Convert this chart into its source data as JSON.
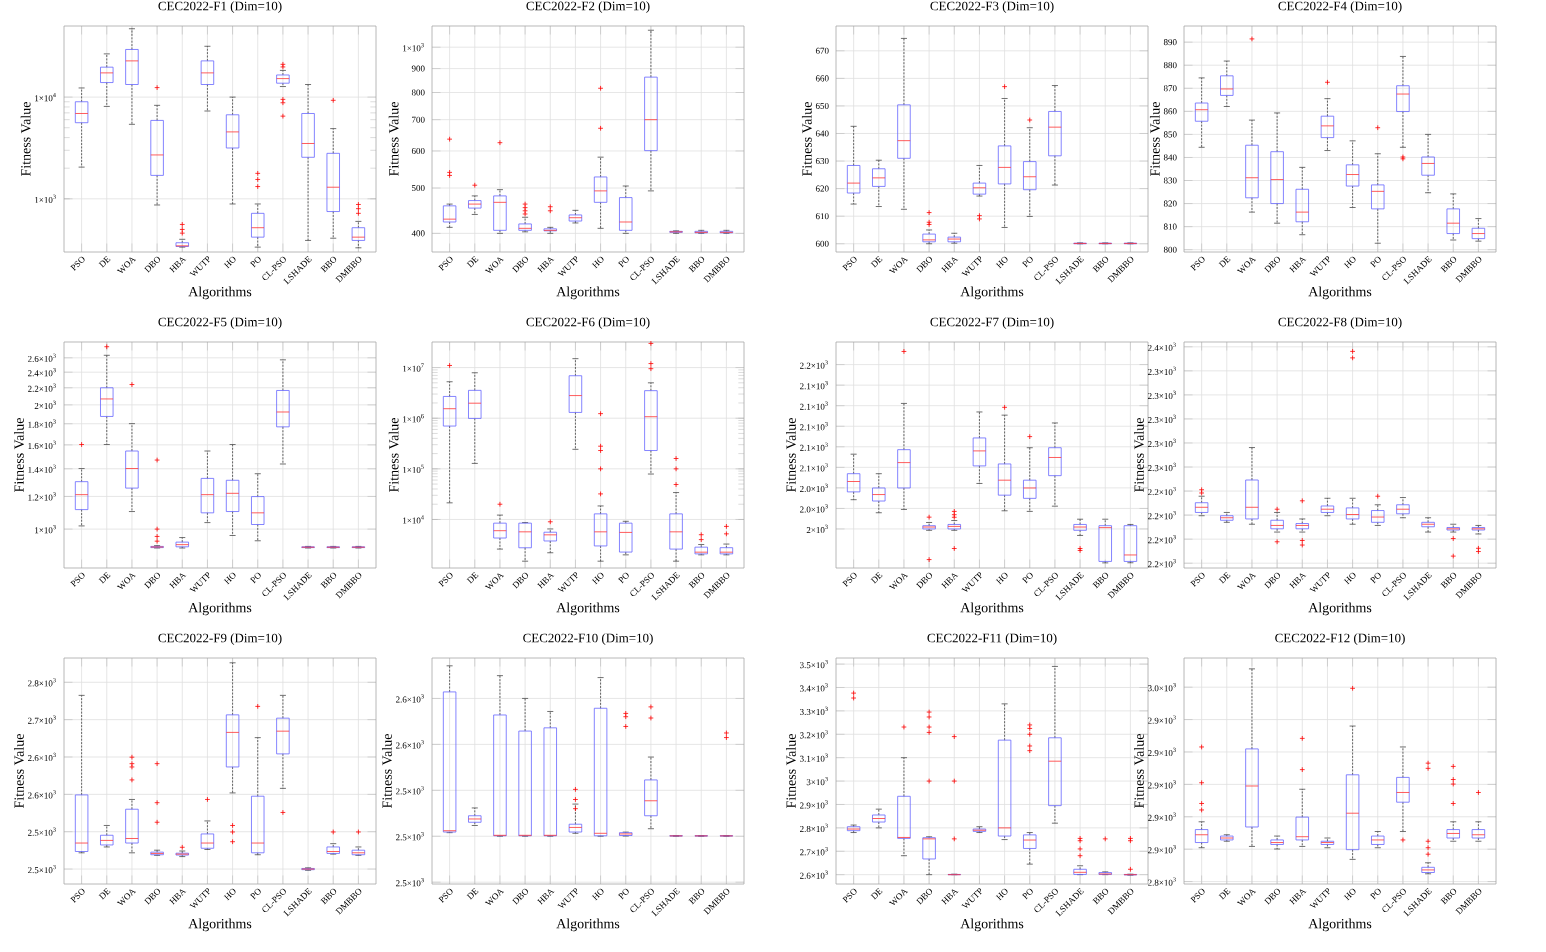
{
  "chart_data": [
    {
      "type": "box",
      "title": "CEC2022-F1 (Dim=10)",
      "xlabel": "Algorithms",
      "ylabel": "Fitness Value",
      "log": true,
      "grid": true,
      "categories": [
        "PSO",
        "DE",
        "WOA",
        "DBO",
        "HBA",
        "WUTP",
        "HO",
        "PO",
        "CL-PSO",
        "LSHADE",
        "BBO",
        "DMBBO"
      ],
      "ylim": [
        300,
        50000
      ],
      "yticks": [
        {
          "value": 1000,
          "label": "1×10$^{3}$"
        },
        {
          "value": 10000,
          "label": "1×10$^{4}$"
        }
      ],
      "boxes": [
        {
          "low": 2050,
          "q1": 5600,
          "median": 6900,
          "q3": 9000,
          "high": 12300
        },
        {
          "low": 8100,
          "q1": 13900,
          "median": 17300,
          "q3": 19700,
          "high": 26600
        },
        {
          "low": 5400,
          "q1": 13300,
          "median": 22700,
          "q3": 29400,
          "high": 47000
        },
        {
          "low": 870,
          "q1": 1700,
          "median": 2700,
          "q3": 5900,
          "high": 8300,
          "outliers": [
            12400
          ]
        },
        {
          "low": 335,
          "q1": 340,
          "median": 345,
          "q3": 370,
          "high": 400,
          "outliers": [
            460,
            500,
            560
          ]
        },
        {
          "low": 7300,
          "q1": 13300,
          "median": 17300,
          "q3": 22700,
          "high": 31600
        },
        {
          "low": 890,
          "q1": 3160,
          "median": 4550,
          "q3": 6700,
          "high": 10000
        },
        {
          "low": 335,
          "q1": 420,
          "median": 520,
          "q3": 720,
          "high": 890,
          "outliers": [
            1320,
            1550,
            1780
          ]
        },
        {
          "low": 12700,
          "q1": 13700,
          "median": 15200,
          "q3": 16500,
          "high": 18300,
          "outliers": [
            19800,
            21000,
            9500,
            8800,
            6500
          ]
        },
        {
          "low": 390,
          "q1": 2560,
          "median": 3500,
          "q3": 6900,
          "high": 13300
        },
        {
          "low": 410,
          "q1": 750,
          "median": 1300,
          "q3": 2800,
          "high": 4900,
          "outliers": [
            9300
          ]
        },
        {
          "low": 330,
          "q1": 390,
          "median": 420,
          "q3": 520,
          "high": 600,
          "outliers": [
            720,
            800,
            880
          ]
        }
      ]
    },
    {
      "type": "box",
      "title": "CEC2022-F2 (Dim=10)",
      "xlabel": "Algorithms",
      "ylabel": "Fitness Value",
      "log": true,
      "grid": true,
      "categories": [
        "PSO",
        "DE",
        "WOA",
        "DBO",
        "HBA",
        "WUTP",
        "HO",
        "PO",
        "CL-PSO",
        "LSHADE",
        "BBO",
        "DMBBO"
      ],
      "ylim": [
        365,
        1110
      ],
      "yticks": [
        400,
        500,
        600,
        700,
        800,
        900,
        {
          "value": 1000,
          "label": "1×10$^{3}$"
        }
      ],
      "boxes": [
        {
          "low": 412,
          "q1": 423,
          "median": 429,
          "q3": 458,
          "high": 462,
          "outliers": [
            532,
            540,
            636
          ]
        },
        {
          "low": 439,
          "q1": 453,
          "median": 462,
          "q3": 470,
          "high": 481,
          "outliers": [
            507
          ]
        },
        {
          "low": 400,
          "q1": 406,
          "median": 466,
          "q3": 481,
          "high": 496,
          "outliers": [
            625
          ]
        },
        {
          "low": 403,
          "q1": 406,
          "median": 410,
          "q3": 419,
          "high": 433,
          "outliers": [
            440,
            447,
            454,
            462
          ]
        },
        {
          "low": 400,
          "q1": 405,
          "median": 406,
          "q3": 409,
          "high": 412,
          "outliers": [
            447,
            456
          ]
        },
        {
          "low": 421,
          "q1": 425,
          "median": 432,
          "q3": 438,
          "high": 448
        },
        {
          "low": 410,
          "q1": 466,
          "median": 493,
          "q3": 528,
          "high": 582,
          "outliers": [
            671,
            817
          ]
        },
        {
          "low": 400,
          "q1": 406,
          "median": 423,
          "q3": 477,
          "high": 505
        },
        {
          "low": 493,
          "q1": 601,
          "median": 700,
          "q3": 863,
          "high": 1087
        },
        {
          "low": 400,
          "q1": 402,
          "median": 403,
          "q3": 404,
          "high": 405
        },
        {
          "low": 400,
          "q1": 401,
          "median": 402,
          "q3": 404,
          "high": 406
        },
        {
          "low": 400,
          "q1": 401,
          "median": 402,
          "q3": 404,
          "high": 406
        }
      ]
    },
    {
      "type": "box",
      "title": "CEC2022-F3 (Dim=10)",
      "xlabel": "Algorithms",
      "ylabel": "Fitness Value",
      "grid": true,
      "categories": [
        "PSO",
        "DE",
        "WOA",
        "DBO",
        "HBA",
        "WUTP",
        "HO",
        "PO",
        "CL-PSO",
        "LSHADE",
        "BBO",
        "DMBBO"
      ],
      "ylim": [
        597,
        679
      ],
      "yticks": [
        600,
        610,
        620,
        630,
        640,
        650,
        660,
        670
      ],
      "boxes": [
        {
          "low": 614.4,
          "q1": 618.4,
          "median": 622,
          "q3": 628.4,
          "high": 642.6
        },
        {
          "low": 613.5,
          "q1": 620.8,
          "median": 623.9,
          "q3": 627.2,
          "high": 630.3
        },
        {
          "low": 612.5,
          "q1": 631,
          "median": 637.4,
          "q3": 650.4,
          "high": 674.5
        },
        {
          "low": 600,
          "q1": 600.7,
          "median": 601.4,
          "q3": 603.5,
          "high": 605,
          "outliers": [
            607,
            607.8,
            611.3
          ]
        },
        {
          "low": 600.2,
          "q1": 600.7,
          "median": 601.7,
          "q3": 602.4,
          "high": 603.8
        },
        {
          "low": 617.3,
          "q1": 618,
          "median": 620.3,
          "q3": 622,
          "high": 628.4,
          "outliers": [
            610.2,
            609
          ]
        },
        {
          "low": 605.9,
          "q1": 621.7,
          "median": 627.7,
          "q3": 635.5,
          "high": 652.7,
          "outliers": [
            657
          ]
        },
        {
          "low": 609.9,
          "q1": 619.6,
          "median": 624.3,
          "q3": 629.8,
          "high": 642.1,
          "outliers": [
            644.9
          ]
        },
        {
          "low": 621.3,
          "q1": 631.9,
          "median": 642.3,
          "q3": 648,
          "high": 657.4
        },
        {
          "low": 600,
          "q1": 600,
          "median": 600.1,
          "q3": 600.2,
          "high": 600.3
        },
        {
          "low": 600,
          "q1": 600,
          "median": 600.1,
          "q3": 600.2,
          "high": 600.3
        },
        {
          "low": 600,
          "q1": 600,
          "median": 600.1,
          "q3": 600.2,
          "high": 600.3
        }
      ]
    },
    {
      "type": "box",
      "title": "CEC2022-F4 (Dim=10)",
      "xlabel": "Algorithms",
      "ylabel": "Fitness Value",
      "grid": true,
      "categories": [
        "PSO",
        "DE",
        "WOA",
        "DBO",
        "HBA",
        "WUTP",
        "HO",
        "PO",
        "CL-PSO",
        "LSHADE",
        "BBO",
        "DMBBO"
      ],
      "ylim": [
        799,
        897
      ],
      "yticks": [
        800,
        810,
        820,
        830,
        840,
        850,
        860,
        870,
        880,
        890
      ],
      "boxes": [
        {
          "low": 844.4,
          "q1": 855.7,
          "median": 860.7,
          "q3": 863.6,
          "high": 874.5
        },
        {
          "low": 862.1,
          "q1": 866.9,
          "median": 869.7,
          "q3": 875.4,
          "high": 881.8
        },
        {
          "low": 816.3,
          "q1": 822.5,
          "median": 831.2,
          "q3": 845.3,
          "high": 856.2,
          "outliers": [
            891.4
          ]
        },
        {
          "low": 811.5,
          "q1": 820,
          "median": 830.4,
          "q3": 842.5,
          "high": 859.3
        },
        {
          "low": 806.5,
          "q1": 812.1,
          "median": 816.3,
          "q3": 826.2,
          "high": 835.7
        },
        {
          "low": 843,
          "q1": 848.6,
          "median": 853.7,
          "q3": 857.9,
          "high": 865.5,
          "outliers": [
            872.6
          ]
        },
        {
          "low": 818.3,
          "q1": 827.6,
          "median": 832.6,
          "q3": 836.8,
          "high": 847.2
        },
        {
          "low": 802.8,
          "q1": 817.7,
          "median": 825.3,
          "q3": 828.1,
          "high": 841.6,
          "outliers": [
            852.9
          ]
        },
        {
          "low": 844.4,
          "q1": 859.9,
          "median": 867.5,
          "q3": 871.1,
          "high": 883.8,
          "outliers": [
            840.2,
            839.4
          ]
        },
        {
          "low": 824.7,
          "q1": 832.3,
          "median": 837.4,
          "q3": 840.2,
          "high": 850
        },
        {
          "low": 804.2,
          "q1": 807,
          "median": 811.5,
          "q3": 817.7,
          "high": 824.2
        },
        {
          "low": 803.7,
          "q1": 804.8,
          "median": 807,
          "q3": 809.3,
          "high": 813.5
        }
      ]
    },
    {
      "type": "box",
      "title": "CEC2022-F5 (Dim=10)",
      "xlabel": "Algorithms",
      "ylabel": "Fitness Value",
      "log": true,
      "grid": true,
      "categories": [
        "PSO",
        "DE",
        "WOA",
        "DBO",
        "HBA",
        "WUTP",
        "HO",
        "PO",
        "CL-PSO",
        "LSHADE",
        "BBO",
        "DMBBO"
      ],
      "ylim": [
        805,
        2840
      ],
      "yticks": [
        {
          "value": 1000,
          "label": "1×10$^{3}$"
        },
        {
          "value": 1200,
          "label": "1.2×10$^{3}$"
        },
        {
          "value": 1400,
          "label": "1.4×10$^{3}$"
        },
        {
          "value": 1600,
          "label": "1.6×10$^{3}$"
        },
        {
          "value": 1800,
          "label": "1.8×10$^{3}$"
        },
        {
          "value": 2000,
          "label": "2×10$^{3}$"
        },
        {
          "value": 2200,
          "label": "2.2×10$^{3}$"
        },
        {
          "value": 2400,
          "label": "2.4×10$^{3}$"
        },
        {
          "value": 2600,
          "label": "2.6×10$^{3}$"
        }
      ],
      "boxes": [
        {
          "low": 1018,
          "q1": 1115,
          "median": 1212,
          "q3": 1303,
          "high": 1402,
          "outliers": [
            1603
          ]
        },
        {
          "low": 1603,
          "q1": 1875,
          "median": 2067,
          "q3": 2200,
          "high": 2637,
          "outliers": [
            2766
          ]
        },
        {
          "low": 1103,
          "q1": 1257,
          "median": 1402,
          "q3": 1546,
          "high": 1801,
          "outliers": [
            2240
          ]
        },
        {
          "low": 900,
          "q1": 902,
          "median": 905,
          "q3": 908,
          "high": 912,
          "outliers": [
            935,
            960,
            1000,
            1470
          ]
        },
        {
          "low": 900,
          "q1": 906,
          "median": 917,
          "q3": 930,
          "high": 954
        },
        {
          "low": 1037,
          "q1": 1095,
          "median": 1212,
          "q3": 1327,
          "high": 1546
        },
        {
          "low": 965,
          "q1": 1103,
          "median": 1221,
          "q3": 1313,
          "high": 1603
        },
        {
          "low": 937,
          "q1": 1026,
          "median": 1095,
          "q3": 1199,
          "high": 1362
        },
        {
          "low": 1438,
          "q1": 1769,
          "median": 1922,
          "q3": 2167,
          "high": 2571
        },
        {
          "low": 900,
          "q1": 902,
          "median": 904,
          "q3": 906,
          "high": 908
        },
        {
          "low": 900,
          "q1": 902,
          "median": 904,
          "q3": 906,
          "high": 908
        },
        {
          "low": 900,
          "q1": 902,
          "median": 904,
          "q3": 906,
          "high": 908
        }
      ]
    },
    {
      "type": "box",
      "title": "CEC2022-F6 (Dim=10)",
      "xlabel": "Algorithms",
      "ylabel": "Fitness Value",
      "log": true,
      "grid": true,
      "categories": [
        "PSO",
        "DE",
        "WOA",
        "DBO",
        "HBA",
        "WUTP",
        "HO",
        "PO",
        "CL-PSO",
        "LSHADE",
        "BBO",
        "DMBBO"
      ],
      "ylim": [
        1100,
        32000000
      ],
      "yticks": [
        {
          "value": 10000,
          "label": "1×10$^{4}$"
        },
        {
          "value": 100000,
          "label": "1×10$^{5}$"
        },
        {
          "value": 1000000,
          "label": "1×10$^{6}$"
        },
        {
          "value": 10000000,
          "label": "1×10$^{7}$"
        }
      ],
      "boxes": [
        {
          "low": 21300,
          "q1": 700000,
          "median": 1540000,
          "q3": 2690000,
          "high": 5250000,
          "outliers": [
            11000000
          ]
        },
        {
          "low": 128000,
          "q1": 990000,
          "median": 1980000,
          "q3": 3550000,
          "high": 7900000
        },
        {
          "low": 2600,
          "q1": 4300,
          "median": 6000,
          "q3": 8460,
          "high": 12200,
          "outliers": [
            20000
          ]
        },
        {
          "low": 1500,
          "q1": 2760,
          "median": 5700,
          "q3": 8460,
          "high": 8700
        },
        {
          "low": 2200,
          "q1": 3760,
          "median": 4970,
          "q3": 5600,
          "high": 6500,
          "outliers": [
            9000
          ]
        },
        {
          "low": 243000,
          "q1": 1300000,
          "median": 2800000,
          "q3": 6900000,
          "high": 15000000
        },
        {
          "low": 1500,
          "q1": 3000,
          "median": 5700,
          "q3": 12900,
          "high": 18500,
          "outliers": [
            32000,
            100000,
            230000,
            280000,
            1230000
          ]
        },
        {
          "low": 2000,
          "q1": 2270,
          "median": 5550,
          "q3": 8460,
          "high": 9200
        },
        {
          "low": 79000,
          "q1": 230000,
          "median": 1070000,
          "q3": 3500000,
          "high": 5000000,
          "outliers": [
            9500000,
            12000000,
            30000000
          ]
        },
        {
          "low": 1500,
          "q1": 2600,
          "median": 5700,
          "q3": 12900,
          "high": 34000,
          "outliers": [
            49000,
            100000,
            160000
          ]
        },
        {
          "low": 2000,
          "q1": 2090,
          "median": 2260,
          "q3": 2840,
          "high": 3200,
          "outliers": [
            4000,
            5000
          ]
        },
        {
          "low": 2000,
          "q1": 2090,
          "median": 2260,
          "q3": 2770,
          "high": 3270,
          "outliers": [
            5200,
            7300
          ]
        }
      ]
    },
    {
      "type": "box",
      "title": "CEC2022-F7 (Dim=10)",
      "xlabel": "Algorithms",
      "ylabel": "Fitness Value",
      "grid": true,
      "categories": [
        "PSO",
        "DE",
        "WOA",
        "DBO",
        "HBA",
        "WUTP",
        "HO",
        "PO",
        "CL-PSO",
        "LSHADE",
        "BBO",
        "DMBBO"
      ],
      "ylim": [
        1962,
        2182
      ],
      "yticks": [
        {
          "value": 2000,
          "label": "2×10$^{3}$"
        },
        {
          "value": 2020,
          "label": "2.0×10$^{3}$"
        },
        {
          "value": 2040,
          "label": "2.0×10$^{3}$"
        },
        {
          "value": 2060,
          "label": "2.1×10$^{3}$"
        },
        {
          "value": 2080,
          "label": "2.1×10$^{3}$"
        },
        {
          "value": 2100,
          "label": "2.1×10$^{3}$"
        },
        {
          "value": 2120,
          "label": "2.1×10$^{3}$"
        },
        {
          "value": 2140,
          "label": "2.1×10$^{3}$"
        },
        {
          "value": 2160,
          "label": "2.2×10$^{3}$"
        }
      ],
      "boxes": [
        {
          "low": 2028.5,
          "q1": 2036.1,
          "median": 2046.2,
          "q3": 2053.8,
          "high": 2072.8
        },
        {
          "low": 2015.8,
          "q1": 2027.2,
          "median": 2033.5,
          "q3": 2039.9,
          "high": 2053.8
        },
        {
          "low": 2019,
          "q1": 2039.9,
          "median": 2064.6,
          "q3": 2077.2,
          "high": 2122.2,
          "outliers": [
            2172.8
          ]
        },
        {
          "low": 1998.7,
          "q1": 2000,
          "median": 2001.9,
          "q3": 2003.2,
          "high": 2006.3,
          "outliers": [
            2011.5,
            1970.2
          ]
        },
        {
          "low": 1998.7,
          "q1": 2000,
          "median": 2002.5,
          "q3": 2004.4,
          "high": 2008.2,
          "outliers": [
            2017.1,
            2013.9,
            2011.4,
            1981
          ]
        },
        {
          "low": 2044.3,
          "q1": 2061.4,
          "median": 2076,
          "q3": 2088.6,
          "high": 2113.9
        },
        {
          "low": 2017.7,
          "q1": 2032.9,
          "median": 2047.5,
          "q3": 2063.3,
          "high": 2110.8,
          "outliers": [
            2118.4
          ]
        },
        {
          "low": 2017.1,
          "q1": 2029.8,
          "median": 2039.9,
          "q3": 2047.5,
          "high": 2079.1,
          "outliers": [
            2089.9
          ]
        },
        {
          "low": 2022.2,
          "q1": 2051.9,
          "median": 2069.6,
          "q3": 2079.1,
          "high": 2103.2
        },
        {
          "low": 1993.7,
          "q1": 1998.7,
          "median": 2001.9,
          "q3": 2004.4,
          "high": 2009.5,
          "outliers": [
            1981,
            1979.1
          ]
        },
        {
          "low": 1967,
          "q1": 1968.4,
          "median": 2001.3,
          "q3": 2003.2,
          "high": 2009.5
        },
        {
          "low": 1967.1,
          "q1": 1968.4,
          "median": 1974.7,
          "q3": 2003.2,
          "high": 2004.4
        }
      ]
    },
    {
      "type": "box",
      "title": "CEC2022-F8 (Dim=10)",
      "xlabel": "Algorithms",
      "ylabel": "Fitness Value",
      "grid": true,
      "categories": [
        "PSO",
        "DE",
        "WOA",
        "DBO",
        "HBA",
        "WUTP",
        "HO",
        "PO",
        "CL-PSO",
        "LSHADE",
        "BBO",
        "DMBBO"
      ],
      "ylim": [
        2176,
        2364
      ],
      "yticks": [
        {
          "value": 2180,
          "label": "2.2×10$^{3}$"
        },
        {
          "value": 2200,
          "label": "2.2×10$^{3}$"
        },
        {
          "value": 2220,
          "label": "2.2×10$^{3}$"
        },
        {
          "value": 2240,
          "label": "2.2×10$^{3}$"
        },
        {
          "value": 2260,
          "label": "2.3×10$^{3}$"
        },
        {
          "value": 2280,
          "label": "2.3×10$^{3}$"
        },
        {
          "value": 2300,
          "label": "2.3×10$^{3}$"
        },
        {
          "value": 2320,
          "label": "2.3×10$^{3}$"
        },
        {
          "value": 2340,
          "label": "2.3×10$^{3}$"
        },
        {
          "value": 2360,
          "label": "2.4×10$^{3}$"
        }
      ],
      "boxes": [
        {
          "low": 2219.5,
          "q1": 2222.2,
          "median": 2226.5,
          "q3": 2230.3,
          "high": 2235.7,
          "outliers": [
            2241.1,
            2238.4
          ]
        },
        {
          "low": 2214,
          "q1": 2215.7,
          "median": 2217.8,
          "q3": 2219.5,
          "high": 2222.2
        },
        {
          "low": 2212.4,
          "q1": 2216.8,
          "median": 2226.5,
          "q3": 2249.2,
          "high": 2276.2
        },
        {
          "low": 2205.9,
          "q1": 2208.6,
          "median": 2211.4,
          "q3": 2215.7,
          "high": 2222.2,
          "outliers": [
            2224.9,
            2197.8
          ]
        },
        {
          "low": 2205.9,
          "q1": 2208.6,
          "median": 2211.4,
          "q3": 2213,
          "high": 2216.8,
          "outliers": [
            2231.9,
            2198.9,
            2195.1
          ]
        },
        {
          "low": 2219.5,
          "q1": 2222.2,
          "median": 2224.9,
          "q3": 2227.6,
          "high": 2234
        },
        {
          "low": 2212.4,
          "q1": 2216.8,
          "median": 2220.5,
          "q3": 2226,
          "high": 2234,
          "outliers": [
            2356.2,
            2350.8
          ]
        },
        {
          "low": 2211.4,
          "q1": 2214,
          "median": 2218.4,
          "q3": 2223.8,
          "high": 2228.6,
          "outliers": [
            2235.7
          ]
        },
        {
          "low": 2217.8,
          "q1": 2221.1,
          "median": 2224.9,
          "q3": 2228.6,
          "high": 2234.6
        },
        {
          "low": 2205.9,
          "q1": 2210.3,
          "median": 2212.4,
          "q3": 2214,
          "high": 2217.8
        },
        {
          "low": 2205.9,
          "q1": 2207.6,
          "median": 2208.6,
          "q3": 2209.7,
          "high": 2212.4,
          "outliers": [
            2200.5,
            2185.9
          ]
        },
        {
          "low": 2204.3,
          "q1": 2207.6,
          "median": 2208.6,
          "q3": 2209.7,
          "high": 2211.4,
          "outliers": [
            2192.4,
            2189.7
          ]
        }
      ]
    },
    {
      "type": "box",
      "title": "CEC2022-F9 (Dim=10)",
      "xlabel": "Algorithms",
      "ylabel": "Fitness Value",
      "grid": true,
      "categories": [
        "PSO",
        "DE",
        "WOA",
        "DBO",
        "HBA",
        "WUTP",
        "HO",
        "PO",
        "CL-PSO",
        "LSHADE",
        "BBO",
        "DMBBO"
      ],
      "ylim": [
        2436,
        2799
      ],
      "yticks": [
        {
          "value": 2460,
          "label": "2.5×10$^{3}$"
        },
        {
          "value": 2520,
          "label": "2.5×10$^{3}$"
        },
        {
          "value": 2580,
          "label": "2.6×10$^{3}$"
        },
        {
          "value": 2640,
          "label": "2.6×10$^{3}$"
        },
        {
          "value": 2700,
          "label": "2.7×10$^{3}$"
        },
        {
          "value": 2760,
          "label": "2.8×10$^{3}$"
        }
      ],
      "boxes": [
        {
          "low": 2486.1,
          "q1": 2488.2,
          "median": 2501.8,
          "q3": 2579.1,
          "high": 2739
        },
        {
          "low": 2495.5,
          "q1": 2498.7,
          "median": 2506,
          "q3": 2514.3,
          "high": 2530
        },
        {
          "low": 2486.1,
          "q1": 2501.8,
          "median": 2509.1,
          "q3": 2556.1,
          "high": 2571.8,
          "outliers": [
            2639.7,
            2629.3,
            2624,
            2603.2
          ]
        },
        {
          "low": 2482,
          "q1": 2483,
          "median": 2485.1,
          "q3": 2487.2,
          "high": 2490.3,
          "outliers": [
            2629.3,
            2566.6,
            2535.2
          ]
        },
        {
          "low": 2480,
          "q1": 2482.5,
          "median": 2484,
          "q3": 2485.5,
          "high": 2489,
          "outliers": [
            2495
          ]
        },
        {
          "low": 2491.4,
          "q1": 2493.4,
          "median": 2501.8,
          "q3": 2516.4,
          "high": 2537.3,
          "outliers": [
            2571.8
          ]
        },
        {
          "low": 2582.3,
          "q1": 2624,
          "median": 2679.5,
          "q3": 2707.7,
          "high": 2791.3,
          "outliers": [
            2530,
            2519.6,
            2503.9
          ]
        },
        {
          "low": 2483,
          "q1": 2486.1,
          "median": 2501.8,
          "q3": 2577,
          "high": 2671.1,
          "outliers": [
            2721.3
          ]
        },
        {
          "low": 2589.6,
          "q1": 2645,
          "median": 2681.5,
          "q3": 2702.4,
          "high": 2739,
          "outliers": [
            2550.9
          ]
        },
        {
          "low": 2458,
          "q1": 2459,
          "median": 2460,
          "q3": 2461,
          "high": 2462
        },
        {
          "low": 2484,
          "q1": 2485.1,
          "median": 2488.2,
          "q3": 2495.5,
          "high": 2500.8,
          "outliers": [
            2519.6
          ]
        },
        {
          "low": 2482,
          "q1": 2483,
          "median": 2486.1,
          "q3": 2490.3,
          "high": 2495.5,
          "outliers": [
            2519.6
          ]
        }
      ]
    },
    {
      "type": "box",
      "title": "CEC2022-F10 (Dim=10)",
      "xlabel": "Algorithms",
      "ylabel": "Fitness Value",
      "grid": true,
      "categories": [
        "PSO",
        "DE",
        "WOA",
        "DBO",
        "HBA",
        "WUTP",
        "HO",
        "PO",
        "CL-PSO",
        "LSHADE",
        "BBO",
        "DMBBO"
      ],
      "ylim": [
        2448,
        2694
      ],
      "yticks": [
        {
          "value": 2450,
          "label": "2.5×10$^{3}$"
        },
        {
          "value": 2500,
          "label": "2.5×10$^{3}$"
        },
        {
          "value": 2550,
          "label": "2.5×10$^{3}$"
        },
        {
          "value": 2600,
          "label": "2.6×10$^{3}$"
        },
        {
          "value": 2650,
          "label": "2.6×10$^{3}$"
        }
      ],
      "boxes": [
        {
          "low": 2503.9,
          "q1": 2504.6,
          "median": 2506,
          "q3": 2657.1,
          "high": 2685.5
        },
        {
          "low": 2511.7,
          "q1": 2515.2,
          "median": 2518.8,
          "q3": 2522.3,
          "high": 2530.8
        },
        {
          "low": 2500,
          "q1": 2500.5,
          "median": 2501,
          "q3": 2632,
          "high": 2674.8
        },
        {
          "low": 2500,
          "q1": 2500.5,
          "median": 2501,
          "q3": 2614.5,
          "high": 2650
        },
        {
          "low": 2500,
          "q1": 2500.5,
          "median": 2501,
          "q3": 2618,
          "high": 2635.8
        },
        {
          "low": 2503.2,
          "q1": 2504.6,
          "median": 2509.6,
          "q3": 2513.1,
          "high": 2535,
          "outliers": [
            2551,
            2540,
            2530
          ]
        },
        {
          "low": 2500,
          "q1": 2500.5,
          "median": 2503.2,
          "q3": 2639.3,
          "high": 2672.7
        },
        {
          "low": 2500.2,
          "q1": 2500.8,
          "median": 2502.5,
          "q3": 2503.9,
          "high": 2504.5,
          "outliers": [
            2633.7,
            2630.1,
            2619.5
          ]
        },
        {
          "low": 2508.2,
          "q1": 2522.3,
          "median": 2538.6,
          "q3": 2561.3,
          "high": 2586.2,
          "outliers": [
            2640.8,
            2628.7
          ]
        },
        {
          "low": 2500,
          "q1": 2500.2,
          "median": 2500.4,
          "q3": 2500.6,
          "high": 2500.8
        },
        {
          "low": 2500,
          "q1": 2500.2,
          "median": 2500.4,
          "q3": 2500.6,
          "high": 2500.8
        },
        {
          "low": 2500,
          "q1": 2500.2,
          "median": 2500.4,
          "q3": 2500.6,
          "high": 2500.8,
          "outliers": [
            2612.4,
            2607.4
          ]
        }
      ]
    },
    {
      "type": "box",
      "title": "CEC2022-F11 (Dim=10)",
      "xlabel": "Algorithms",
      "ylabel": "Fitness Value",
      "grid": true,
      "categories": [
        "PSO",
        "DE",
        "WOA",
        "DBO",
        "HBA",
        "WUTP",
        "HO",
        "PO",
        "CL-PSO",
        "LSHADE",
        "BBO",
        "DMBBO"
      ],
      "ylim": [
        2560,
        3526
      ],
      "yticks": [
        {
          "value": 2600,
          "label": "2.6×10$^{3}$"
        },
        {
          "value": 2700,
          "label": "2.7×10$^{3}$"
        },
        {
          "value": 2800,
          "label": "2.8×10$^{3}$"
        },
        {
          "value": 2900,
          "label": "2.9×10$^{3}$"
        },
        {
          "value": 3000,
          "label": "3×10$^{3}$"
        },
        {
          "value": 3100,
          "label": "3.1×10$^{3}$"
        },
        {
          "value": 3200,
          "label": "3.2×10$^{3}$"
        },
        {
          "value": 3300,
          "label": "3.3×10$^{3}$"
        },
        {
          "value": 3400,
          "label": "3.4×10$^{3}$"
        },
        {
          "value": 3500,
          "label": "3.5×10$^{3}$"
        }
      ],
      "boxes": [
        {
          "low": 2780,
          "q1": 2788,
          "median": 2795,
          "q3": 2805,
          "high": 2812,
          "outliers": [
            3355,
            3376
          ]
        },
        {
          "low": 2800,
          "q1": 2825,
          "median": 2840,
          "q3": 2855,
          "high": 2880
        },
        {
          "low": 2681,
          "q1": 2755,
          "median": 2759,
          "q3": 2935,
          "high": 3100,
          "outliers": [
            3231
          ]
        },
        {
          "low": 2600,
          "q1": 2667,
          "median": 2753,
          "q3": 2758,
          "high": 2762,
          "outliers": [
            3295,
            3274,
            3231,
            3208,
            3000
          ]
        },
        {
          "low": 2600,
          "q1": 2600,
          "median": 2600,
          "q3": 2601,
          "high": 2602,
          "outliers": [
            3190,
            3000,
            2753
          ]
        },
        {
          "low": 2780,
          "q1": 2785,
          "median": 2790,
          "q3": 2795,
          "high": 2805
        },
        {
          "low": 2750,
          "q1": 2765,
          "median": 2800,
          "q3": 3175,
          "high": 3330
        },
        {
          "low": 2645,
          "q1": 2712,
          "median": 2748,
          "q3": 2770,
          "high": 2780,
          "outliers": [
            3240,
            3225,
            3200,
            3150,
            3130
          ]
        },
        {
          "low": 2820,
          "q1": 2895,
          "median": 3085,
          "q3": 3185,
          "high": 3490
        },
        {
          "low": 2600,
          "q1": 2601,
          "median": 2610,
          "q3": 2623,
          "high": 2638,
          "outliers": [
            2755,
            2745,
            2710,
            2681
          ]
        },
        {
          "low": 2600,
          "q1": 2601,
          "median": 2603,
          "q3": 2609,
          "high": 2612,
          "outliers": [
            2753
          ]
        },
        {
          "low": 2598,
          "q1": 2599,
          "median": 2600,
          "q3": 2601,
          "high": 2602,
          "outliers": [
            2755,
            2745,
            2623
          ]
        }
      ]
    },
    {
      "type": "box",
      "title": "CEC2022-F12 (Dim=10)",
      "xlabel": "Algorithms",
      "ylabel": "Fitness Value",
      "grid": true,
      "categories": [
        "PSO",
        "DE",
        "WOA",
        "DBO",
        "HBA",
        "WUTP",
        "HO",
        "PO",
        "CL-PSO",
        "LSHADE",
        "BBO",
        "DMBBO"
      ],
      "ylim": [
        2838.5,
        2978
      ],
      "yticks": [
        {
          "value": 2840,
          "label": "2.8×10$^{3}$"
        },
        {
          "value": 2860,
          "label": "2.9×10$^{3}$"
        },
        {
          "value": 2880,
          "label": "2.9×10$^{3}$"
        },
        {
          "value": 2900,
          "label": "2.9×10$^{3}$"
        },
        {
          "value": 2920,
          "label": "2.9×10$^{3}$"
        },
        {
          "value": 2940,
          "label": "2.9×10$^{3}$"
        },
        {
          "value": 2960,
          "label": "3.0×10$^{3}$"
        }
      ],
      "boxes": [
        {
          "low": 2860.9,
          "q1": 2864.1,
          "median": 2868.9,
          "q3": 2872.1,
          "high": 2876.9,
          "outliers": [
            2923.1,
            2901,
            2888.2,
            2884.2
          ]
        },
        {
          "low": 2864.9,
          "q1": 2865.7,
          "median": 2866.9,
          "q3": 2868.1,
          "high": 2868.9
        },
        {
          "low": 2861.7,
          "q1": 2873.7,
          "median": 2899,
          "q3": 2921.9,
          "high": 2971.3
        },
        {
          "low": 2860.1,
          "q1": 2862.9,
          "median": 2864.1,
          "q3": 2865.7,
          "high": 2868.1
        },
        {
          "low": 2861.7,
          "q1": 2865.7,
          "median": 2867.7,
          "q3": 2879.8,
          "high": 2897,
          "outliers": [
            2928.4,
            2909.1
          ]
        },
        {
          "low": 2860.9,
          "q1": 2862.9,
          "median": 2864.1,
          "q3": 2864.9,
          "high": 2866.9
        },
        {
          "low": 2853.7,
          "q1": 2859.7,
          "median": 2882.2,
          "q3": 2905.9,
          "high": 2936,
          "outliers": [
            2959.3
          ]
        },
        {
          "low": 2860.9,
          "q1": 2862.9,
          "median": 2865.7,
          "q3": 2868.1,
          "high": 2870.9
        },
        {
          "low": 2870.9,
          "q1": 2889,
          "median": 2895,
          "q3": 2904.3,
          "high": 2923.1,
          "outliers": [
            2865.7
          ]
        },
        {
          "low": 2844.8,
          "q1": 2845.6,
          "median": 2847.2,
          "q3": 2848.8,
          "high": 2851.6,
          "outliers": [
            2913.1,
            2909.9,
            2864.9,
            2860.9,
            2856.9
          ]
        },
        {
          "low": 2864.9,
          "q1": 2866.9,
          "median": 2869.7,
          "q3": 2872.1,
          "high": 2876.9,
          "outliers": [
            2911.1,
            2903,
            2900.2,
            2888.2
          ]
        },
        {
          "low": 2864.9,
          "q1": 2866.9,
          "median": 2868.9,
          "q3": 2872.1,
          "high": 2876.9,
          "outliers": [
            2895
          ]
        }
      ]
    }
  ]
}
